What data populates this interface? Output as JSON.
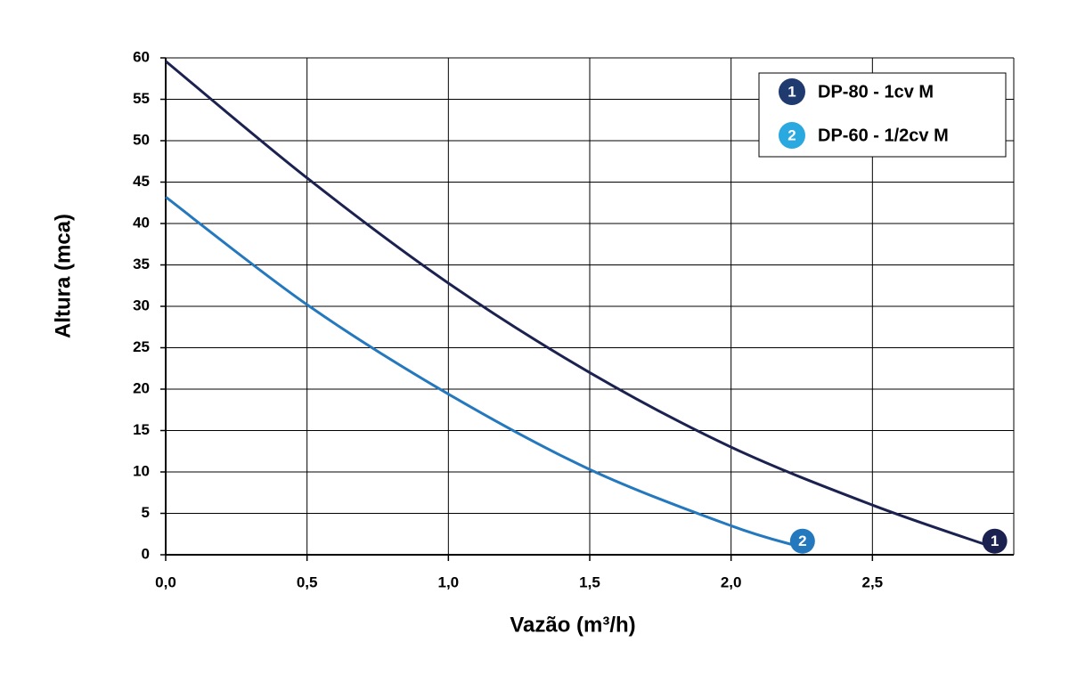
{
  "chart_data": {
    "type": "line",
    "x_label": "Vazão (m³/h)",
    "y_label": "Altura (mca)",
    "xlim": [
      0,
      3
    ],
    "ylim": [
      0,
      60
    ],
    "xticks": [
      {
        "value": 0,
        "label": "0,0"
      },
      {
        "value": 0.5,
        "label": "0,5"
      },
      {
        "value": 1,
        "label": "1,0"
      },
      {
        "value": 1.5,
        "label": "1,5"
      },
      {
        "value": 2,
        "label": "2,0"
      },
      {
        "value": 2.5,
        "label": "2,5"
      }
    ],
    "yticks": [
      0,
      5,
      10,
      15,
      20,
      25,
      30,
      35,
      40,
      45,
      50,
      55,
      60
    ],
    "grid": true,
    "legend": "top-right",
    "series": [
      {
        "name": "DP-80 - 1cv M",
        "marker_label": "1",
        "color": "#1c2250",
        "legend_color": "#1f3a6e",
        "x": [
          0,
          0.5,
          1,
          1.5,
          2,
          2.5,
          2.92
        ],
        "values": [
          59.6,
          45.5,
          32.8,
          22,
          13,
          6,
          1
        ]
      },
      {
        "name": "DP-60 - 1/2cv M",
        "marker_label": "2",
        "color": "#2478be",
        "legend_color": "#29a9e0",
        "x": [
          0,
          0.5,
          1,
          1.5,
          2,
          2.24
        ],
        "values": [
          43.2,
          30.2,
          19.4,
          10.3,
          3.5,
          1
        ]
      }
    ]
  }
}
